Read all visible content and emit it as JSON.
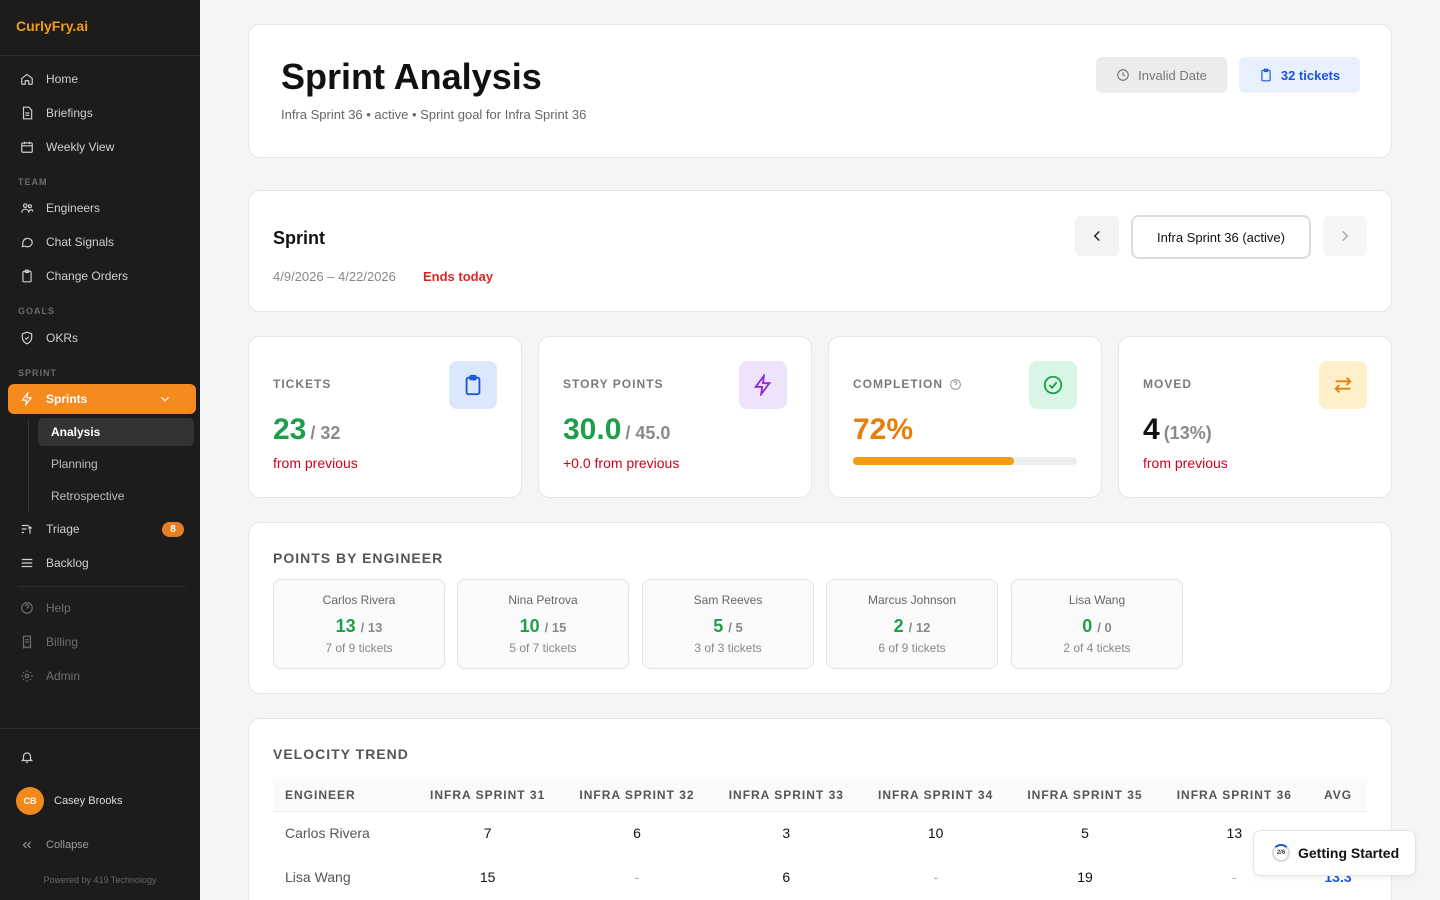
{
  "sidebar": {
    "brand": "CurlyFry.ai",
    "items": [
      {
        "label": "Home",
        "icon": "home-icon"
      },
      {
        "label": "Briefings",
        "icon": "document-icon"
      },
      {
        "label": "Weekly View",
        "icon": "calendar-icon"
      }
    ],
    "team_section": "TEAM",
    "team_items": [
      {
        "label": "Engineers",
        "icon": "users-icon"
      },
      {
        "label": "Chat Signals",
        "icon": "chat-icon"
      },
      {
        "label": "Change Orders",
        "icon": "clipboard-icon"
      }
    ],
    "goals_section": "GOALS",
    "goals_items": [
      {
        "label": "OKRs",
        "icon": "shield-icon"
      }
    ],
    "sprint_section": "SPRINT",
    "sprints_label": "Sprints",
    "sprint_sub": [
      "Analysis",
      "Planning",
      "Retrospective"
    ],
    "triage_label": "Triage",
    "triage_badge": "8",
    "backlog_label": "Backlog",
    "bottom_items": [
      "Help",
      "Billing",
      "Admin"
    ],
    "user_initials": "CB",
    "user_name": "Casey Brooks",
    "collapse_label": "Collapse",
    "powered": "Powered by 419 Technology"
  },
  "header": {
    "title": "Sprint Analysis",
    "subtitle": "Infra Sprint 36 • active • Sprint goal for Infra Sprint 36",
    "date_pill": "Invalid Date",
    "tickets_pill": "32 tickets"
  },
  "sprint": {
    "label": "Sprint",
    "dates": "4/9/2026 – 4/22/2026",
    "ends": "Ends today",
    "selected": "Infra Sprint 36 (active)"
  },
  "stats": {
    "tickets": {
      "label": "TICKETS",
      "value": "23",
      "of": "/ 32",
      "sub": "from previous"
    },
    "points": {
      "label": "STORY POINTS",
      "value": "30.0",
      "of": "/ 45.0",
      "sub": "+0.0 from previous"
    },
    "completion": {
      "label": "COMPLETION",
      "value": "72%",
      "progress": 0.72
    },
    "moved": {
      "label": "MOVED",
      "value": "4",
      "of": "(13%)",
      "sub": "from previous"
    }
  },
  "points_by_engineer": {
    "title": "POINTS BY ENGINEER",
    "engineers": [
      {
        "name": "Carlos Rivera",
        "done": "13",
        "of": "/ 13",
        "tickets": "7 of 9 tickets"
      },
      {
        "name": "Nina Petrova",
        "done": "10",
        "of": "/ 15",
        "tickets": "5 of 7 tickets"
      },
      {
        "name": "Sam Reeves",
        "done": "5",
        "of": "/ 5",
        "tickets": "3 of 3 tickets"
      },
      {
        "name": "Marcus Johnson",
        "done": "2",
        "of": "/ 12",
        "tickets": "6 of 9 tickets"
      },
      {
        "name": "Lisa Wang",
        "done": "0",
        "of": "/ 0",
        "tickets": "2 of 4 tickets"
      }
    ]
  },
  "velocity": {
    "title": "VELOCITY TREND",
    "headers": [
      "ENGINEER",
      "INFRA SPRINT 31",
      "INFRA SPRINT 32",
      "INFRA SPRINT 33",
      "INFRA SPRINT 34",
      "INFRA SPRINT 35",
      "INFRA SPRINT 36",
      "AVG"
    ],
    "rows": [
      [
        "Carlos Rivera",
        "7",
        "6",
        "3",
        "10",
        "5",
        "13",
        ""
      ],
      [
        "Lisa Wang",
        "15",
        "-",
        "6",
        "-",
        "19",
        "-",
        "13.3"
      ]
    ]
  },
  "getting_started": {
    "label": "Getting Started",
    "progress": "2/6"
  },
  "colors": {
    "accent": "#f58a1f",
    "green": "#1e9e4a",
    "blue": "#1a56db",
    "red": "#d0021b"
  }
}
